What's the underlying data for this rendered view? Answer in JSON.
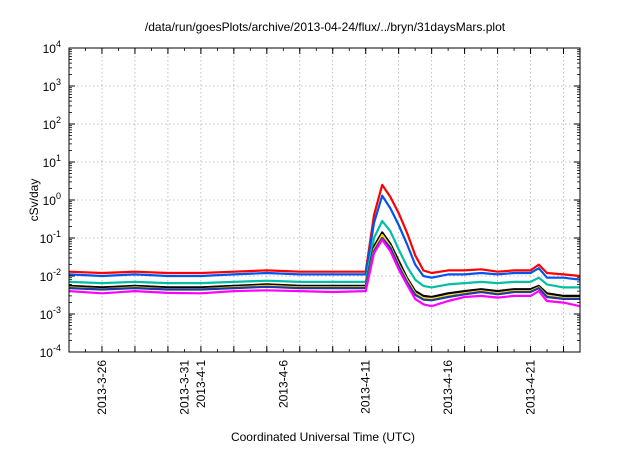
{
  "chart_data": {
    "type": "line",
    "title": "/data/run/goesPlots/archive/2013-04-24/flux/../bryn/31daysMars.plot",
    "xlabel": "Coordinated Universal Time (UTC)",
    "ylabel": "cSv/day",
    "yscale": "log",
    "ylim": [
      0.0001,
      10000
    ],
    "xlim": [
      "2013-03-24",
      "2013-04-24"
    ],
    "grid": true,
    "legend": "none",
    "y_ticks": [
      {
        "value": 0.0001,
        "base": "10",
        "exp": "-4"
      },
      {
        "value": 0.001,
        "base": "10",
        "exp": "-3"
      },
      {
        "value": 0.01,
        "base": "10",
        "exp": "-2"
      },
      {
        "value": 0.1,
        "base": "10",
        "exp": "-1"
      },
      {
        "value": 1,
        "base": "10",
        "exp": "0"
      },
      {
        "value": 10,
        "base": "10",
        "exp": "1"
      },
      {
        "value": 100,
        "base": "10",
        "exp": "2"
      },
      {
        "value": 1000,
        "base": "10",
        "exp": "3"
      },
      {
        "value": 10000,
        "base": "10",
        "exp": "4"
      }
    ],
    "x_tick_labels": [
      {
        "date": "2013-03-26",
        "label": "2013-3-26"
      },
      {
        "date": "2013-03-31",
        "label": "2013-3-31"
      },
      {
        "date": "2013-04-01",
        "label": "2013-4-1"
      },
      {
        "date": "2013-04-06",
        "label": "2013-4-6"
      },
      {
        "date": "2013-04-11",
        "label": "2013-4-11"
      },
      {
        "date": "2013-04-16",
        "label": "2013-4-16"
      },
      {
        "date": "2013-04-21",
        "label": "2013-4-21"
      }
    ],
    "x_gridlines": [
      "2013-03-26",
      "2013-03-28",
      "2013-03-30",
      "2013-04-01",
      "2013-04-03",
      "2013-04-05",
      "2013-04-07",
      "2013-04-09",
      "2013-04-11",
      "2013-04-13",
      "2013-04-15",
      "2013-04-17",
      "2013-04-19",
      "2013-04-21",
      "2013-04-23"
    ],
    "x": [
      "2013-03-24",
      "2013-03-26",
      "2013-03-28",
      "2013-03-30",
      "2013-04-01",
      "2013-04-03",
      "2013-04-05",
      "2013-04-07",
      "2013-04-09",
      "2013-04-11",
      "2013-04-11T12:00",
      "2013-04-12",
      "2013-04-12T12:00",
      "2013-04-13",
      "2013-04-13T12:00",
      "2013-04-14",
      "2013-04-14T12:00",
      "2013-04-15",
      "2013-04-16",
      "2013-04-17",
      "2013-04-18",
      "2013-04-19",
      "2013-04-20",
      "2013-04-21",
      "2013-04-21T12:00",
      "2013-04-22",
      "2013-04-23",
      "2013-04-24"
    ],
    "series": [
      {
        "color": "#ff0000",
        "values": [
          0.013,
          0.012,
          0.013,
          0.012,
          0.012,
          0.013,
          0.014,
          0.013,
          0.013,
          0.013,
          0.4,
          2.5,
          1.2,
          0.45,
          0.14,
          0.035,
          0.014,
          0.012,
          0.014,
          0.014,
          0.015,
          0.013,
          0.014,
          0.014,
          0.02,
          0.012,
          0.011,
          0.01
        ]
      },
      {
        "color": "#0055ee",
        "values": [
          0.011,
          0.01,
          0.011,
          0.01,
          0.01,
          0.011,
          0.012,
          0.011,
          0.011,
          0.011,
          0.25,
          1.3,
          0.6,
          0.22,
          0.07,
          0.02,
          0.01,
          0.009,
          0.011,
          0.011,
          0.012,
          0.011,
          0.012,
          0.012,
          0.016,
          0.009,
          0.009,
          0.008
        ]
      },
      {
        "color": "#00bfa5",
        "values": [
          0.007,
          0.0065,
          0.007,
          0.0065,
          0.0065,
          0.007,
          0.0075,
          0.007,
          0.007,
          0.007,
          0.1,
          0.28,
          0.15,
          0.05,
          0.018,
          0.008,
          0.0055,
          0.005,
          0.006,
          0.0065,
          0.007,
          0.0065,
          0.007,
          0.007,
          0.009,
          0.006,
          0.005,
          0.005
        ]
      },
      {
        "color": "#000000",
        "values": [
          0.0055,
          0.005,
          0.0055,
          0.005,
          0.005,
          0.0055,
          0.006,
          0.0055,
          0.0055,
          0.0055,
          0.06,
          0.14,
          0.07,
          0.025,
          0.009,
          0.004,
          0.003,
          0.0028,
          0.0035,
          0.004,
          0.0045,
          0.004,
          0.0045,
          0.0045,
          0.0055,
          0.0035,
          0.003,
          0.003
        ]
      },
      {
        "color": "#ffd700",
        "values": [
          0.005,
          0.0045,
          0.005,
          0.0045,
          0.0045,
          0.005,
          0.0055,
          0.005,
          0.005,
          0.005,
          0.05,
          0.12,
          0.06,
          0.02,
          0.008,
          0.0035,
          0.0026,
          0.0025,
          0.003,
          0.0035,
          0.004,
          0.0035,
          0.004,
          0.004,
          0.005,
          0.003,
          0.0026,
          0.0026
        ]
      },
      {
        "color": "#1e3ca0",
        "values": [
          0.0048,
          0.0044,
          0.0048,
          0.0044,
          0.0044,
          0.0048,
          0.0052,
          0.0048,
          0.0048,
          0.0048,
          0.045,
          0.1,
          0.055,
          0.018,
          0.007,
          0.0032,
          0.0024,
          0.0023,
          0.0028,
          0.0033,
          0.0038,
          0.0033,
          0.0038,
          0.0038,
          0.0048,
          0.0028,
          0.0025,
          0.0025
        ]
      },
      {
        "color": "#ff00ff",
        "values": [
          0.004,
          0.0035,
          0.004,
          0.0036,
          0.0035,
          0.004,
          0.0042,
          0.004,
          0.0038,
          0.004,
          0.04,
          0.09,
          0.045,
          0.015,
          0.006,
          0.0025,
          0.0018,
          0.0016,
          0.0022,
          0.0028,
          0.003,
          0.0027,
          0.003,
          0.003,
          0.004,
          0.0022,
          0.002,
          0.0016
        ]
      }
    ]
  }
}
